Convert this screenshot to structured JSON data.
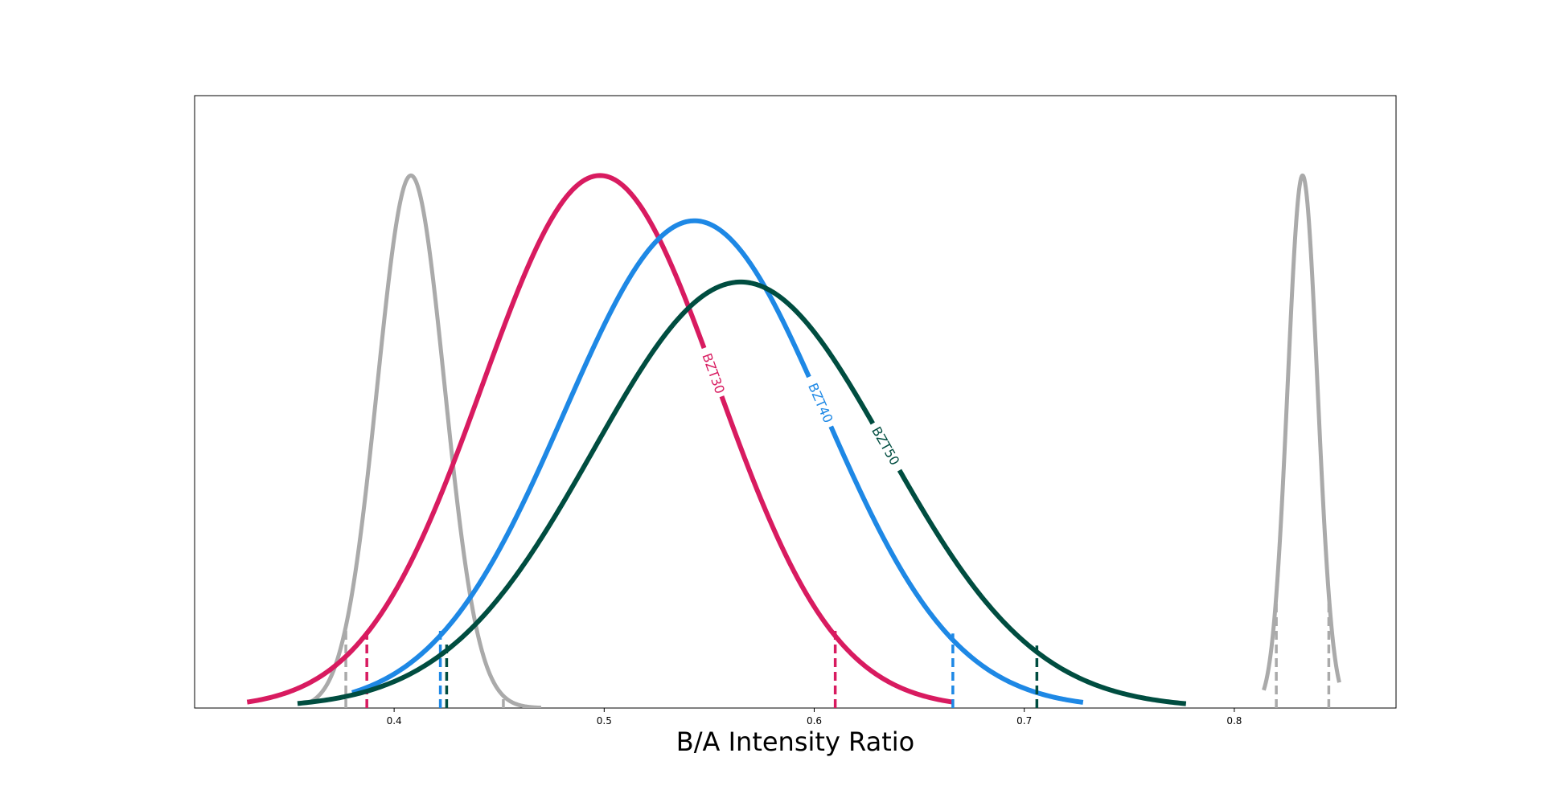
{
  "chart_data": {
    "type": "line",
    "title": "",
    "xlabel": "B/A Intensity Ratio",
    "ylabel": "",
    "xlim": [
      0.305,
      0.877
    ],
    "ylim": [
      0,
      1.15
    ],
    "x_ticks": [
      "0.4",
      "0.5",
      "0.6",
      "0.7",
      "0.8"
    ],
    "x_tick_values": [
      0.4,
      0.5,
      0.6,
      0.7,
      0.8
    ],
    "y_ticks_shown": false,
    "grid": false,
    "legend": "none",
    "series": [
      {
        "name": "BZT30",
        "color": "#d81b60",
        "distribution": "gaussian",
        "mean": 0.498,
        "sd": 0.056,
        "peak": 1.0,
        "x_range": [
          0.33,
          0.666
        ],
        "bounds": [
          0.387,
          0.61
        ],
        "label_x": 0.552
      },
      {
        "name": "BZT40",
        "color": "#1e88e5",
        "distribution": "gaussian",
        "mean": 0.543,
        "sd": 0.062,
        "peak": 0.915,
        "x_range": [
          0.38,
          0.728
        ],
        "bounds": [
          0.422,
          0.666
        ],
        "label_x": 0.603
      },
      {
        "name": "BZT50",
        "color": "#004d40",
        "distribution": "gaussian",
        "mean": 0.565,
        "sd": 0.07,
        "peak": 0.8,
        "x_range": [
          0.354,
          0.777
        ],
        "bounds": [
          0.425,
          0.706
        ],
        "label_x": 0.634
      }
    ],
    "reference_curves": {
      "color": "#aaaaaa",
      "items": [
        {
          "mean": 0.408,
          "sd": 0.016,
          "x_range": [
            0.36,
            0.47
          ],
          "bounds": [
            0.377,
            0.452
          ]
        },
        {
          "mean": 0.8325,
          "sd": 0.0071,
          "x_range": [
            0.814,
            0.85
          ],
          "bounds": [
            0.82,
            0.845
          ]
        }
      ]
    }
  }
}
